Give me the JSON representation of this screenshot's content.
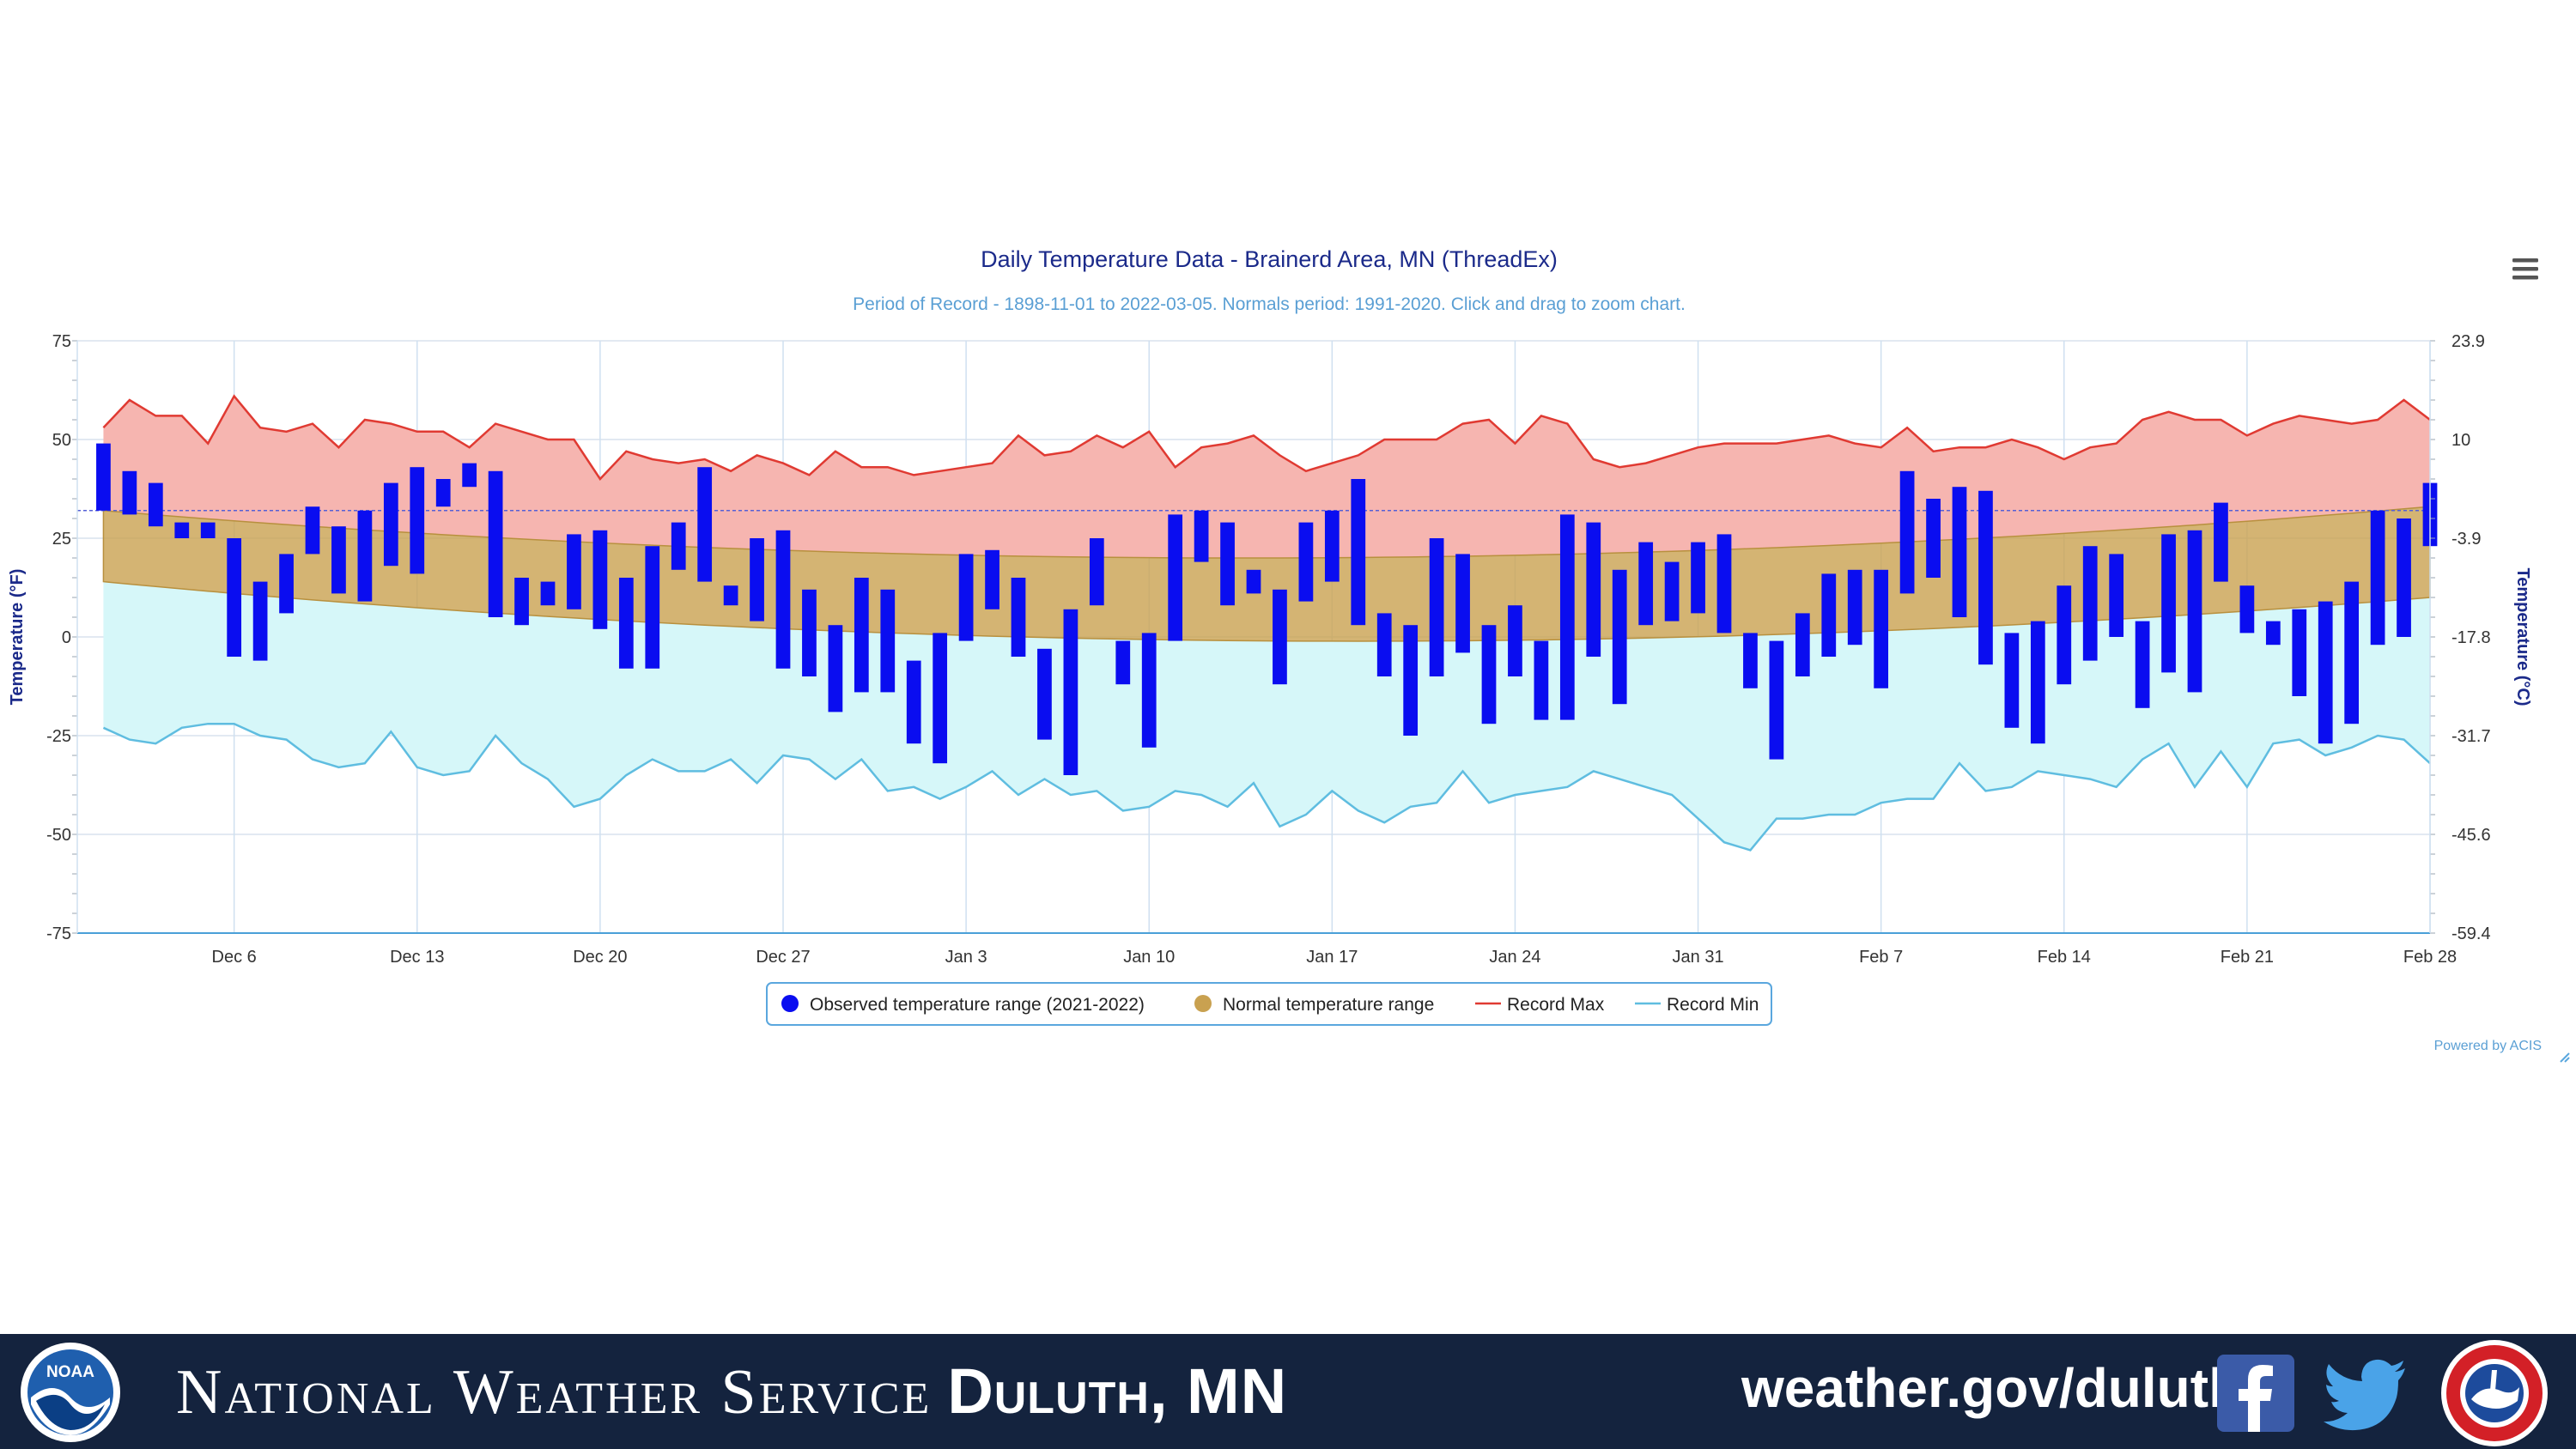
{
  "colors": {
    "observed": "#0a0df0",
    "normal": "#c9a150",
    "record_max_line": "#e03a32",
    "record_max_fill": "#f6b5b0",
    "record_min_line": "#5fbde0",
    "record_min_fill": "#d6f7f9",
    "title": "#1b2a8a",
    "subtitle": "#5a9fd4",
    "footer_bg": "#14233e"
  },
  "chart_data": {
    "type": "bar",
    "title": "Daily Temperature Data - Brainerd Area, MN (ThreadEx)",
    "subtitle": "Period of Record - 1898-11-01 to 2022-03-05. Normals period: 1991-2020. Click and drag to zoom chart.",
    "ylabel": "Temperature (°F)",
    "ylabel_right": "Temperature (°C)",
    "ylim": [
      -75,
      75
    ],
    "yticks": [
      "75",
      "50",
      "25",
      "0",
      "-25",
      "-50",
      "-75"
    ],
    "yticks_right": [
      "23.9",
      "10",
      "-3.9",
      "-17.8",
      "-31.7",
      "-45.6",
      "-59.4"
    ],
    "xlim": [
      "2021-11-30",
      "2022-02-28"
    ],
    "xticks": [
      {
        "date": "2021-12-06",
        "label": "Dec 6"
      },
      {
        "date": "2021-12-13",
        "label": "Dec 13"
      },
      {
        "date": "2021-12-20",
        "label": "Dec 20"
      },
      {
        "date": "2021-12-27",
        "label": "Dec 27"
      },
      {
        "date": "2022-01-03",
        "label": "Jan 3"
      },
      {
        "date": "2022-01-10",
        "label": "Jan 10"
      },
      {
        "date": "2022-01-17",
        "label": "Jan 17"
      },
      {
        "date": "2022-01-24",
        "label": "Jan 24"
      },
      {
        "date": "2022-01-31",
        "label": "Jan 31"
      },
      {
        "date": "2022-02-07",
        "label": "Feb 7"
      },
      {
        "date": "2022-02-14",
        "label": "Feb 14"
      },
      {
        "date": "2022-02-21",
        "label": "Feb 21"
      },
      {
        "date": "2022-02-28",
        "label": "Feb 28"
      }
    ],
    "freezing_reference_f": 32,
    "legend_position": "bottom-center",
    "legend": [
      "Observed temperature range (2021-2022)",
      "Normal temperature range",
      "Record Max",
      "Record Min"
    ],
    "credit": "Powered by ACIS",
    "observed": [
      {
        "date": "2021-12-01",
        "min": 32,
        "max": 49
      },
      {
        "date": "2021-12-02",
        "min": 31,
        "max": 42
      },
      {
        "date": "2021-12-03",
        "min": 28,
        "max": 39
      },
      {
        "date": "2021-12-04",
        "min": 25,
        "max": 29
      },
      {
        "date": "2021-12-05",
        "min": 25,
        "max": 29
      },
      {
        "date": "2021-12-06",
        "min": -5,
        "max": 25
      },
      {
        "date": "2021-12-07",
        "min": -6,
        "max": 14
      },
      {
        "date": "2021-12-08",
        "min": 6,
        "max": 21
      },
      {
        "date": "2021-12-09",
        "min": 21,
        "max": 33
      },
      {
        "date": "2021-12-10",
        "min": 11,
        "max": 28
      },
      {
        "date": "2021-12-11",
        "min": 9,
        "max": 32
      },
      {
        "date": "2021-12-12",
        "min": 18,
        "max": 39
      },
      {
        "date": "2021-12-13",
        "min": 16,
        "max": 43
      },
      {
        "date": "2021-12-14",
        "min": 33,
        "max": 40
      },
      {
        "date": "2021-12-15",
        "min": 38,
        "max": 44
      },
      {
        "date": "2021-12-16",
        "min": 5,
        "max": 42
      },
      {
        "date": "2021-12-17",
        "min": 3,
        "max": 15
      },
      {
        "date": "2021-12-18",
        "min": 8,
        "max": 14
      },
      {
        "date": "2021-12-19",
        "min": 7,
        "max": 26
      },
      {
        "date": "2021-12-20",
        "min": 2,
        "max": 27
      },
      {
        "date": "2021-12-21",
        "min": -8,
        "max": 15
      },
      {
        "date": "2021-12-22",
        "min": -8,
        "max": 23
      },
      {
        "date": "2021-12-23",
        "min": 17,
        "max": 29
      },
      {
        "date": "2021-12-24",
        "min": 14,
        "max": 43
      },
      {
        "date": "2021-12-25",
        "min": 8,
        "max": 13
      },
      {
        "date": "2021-12-26",
        "min": 4,
        "max": 25
      },
      {
        "date": "2021-12-27",
        "min": -8,
        "max": 27
      },
      {
        "date": "2021-12-28",
        "min": -10,
        "max": 12
      },
      {
        "date": "2021-12-29",
        "min": -19,
        "max": 3
      },
      {
        "date": "2021-12-30",
        "min": -14,
        "max": 15
      },
      {
        "date": "2021-12-31",
        "min": -14,
        "max": 12
      },
      {
        "date": "2022-01-01",
        "min": -27,
        "max": -6
      },
      {
        "date": "2022-01-02",
        "min": -32,
        "max": 1
      },
      {
        "date": "2022-01-03",
        "min": -1,
        "max": 21
      },
      {
        "date": "2022-01-04",
        "min": 7,
        "max": 22
      },
      {
        "date": "2022-01-05",
        "min": -5,
        "max": 15
      },
      {
        "date": "2022-01-06",
        "min": -26,
        "max": -3
      },
      {
        "date": "2022-01-07",
        "min": -35,
        "max": 7
      },
      {
        "date": "2022-01-08",
        "min": 8,
        "max": 25
      },
      {
        "date": "2022-01-09",
        "min": -12,
        "max": -1
      },
      {
        "date": "2022-01-10",
        "min": -28,
        "max": 1
      },
      {
        "date": "2022-01-11",
        "min": -1,
        "max": 31
      },
      {
        "date": "2022-01-12",
        "min": 19,
        "max": 32
      },
      {
        "date": "2022-01-13",
        "min": 8,
        "max": 29
      },
      {
        "date": "2022-01-14",
        "min": 11,
        "max": 17
      },
      {
        "date": "2022-01-15",
        "min": -12,
        "max": 12
      },
      {
        "date": "2022-01-16",
        "min": 9,
        "max": 29
      },
      {
        "date": "2022-01-17",
        "min": 14,
        "max": 32
      },
      {
        "date": "2022-01-18",
        "min": 3,
        "max": 40
      },
      {
        "date": "2022-01-19",
        "min": -10,
        "max": 6
      },
      {
        "date": "2022-01-20",
        "min": -25,
        "max": 3
      },
      {
        "date": "2022-01-21",
        "min": -10,
        "max": 25
      },
      {
        "date": "2022-01-22",
        "min": -4,
        "max": 21
      },
      {
        "date": "2022-01-23",
        "min": -22,
        "max": 3
      },
      {
        "date": "2022-01-24",
        "min": -10,
        "max": 8
      },
      {
        "date": "2022-01-25",
        "min": -21,
        "max": -1
      },
      {
        "date": "2022-01-26",
        "min": -21,
        "max": 31
      },
      {
        "date": "2022-01-27",
        "min": -5,
        "max": 29
      },
      {
        "date": "2022-01-28",
        "min": -17,
        "max": 17
      },
      {
        "date": "2022-01-29",
        "min": 3,
        "max": 24
      },
      {
        "date": "2022-01-30",
        "min": 4,
        "max": 19
      },
      {
        "date": "2022-01-31",
        "min": 6,
        "max": 24
      },
      {
        "date": "2022-02-01",
        "min": 1,
        "max": 26
      },
      {
        "date": "2022-02-02",
        "min": -13,
        "max": 1
      },
      {
        "date": "2022-02-03",
        "min": -31,
        "max": -1
      },
      {
        "date": "2022-02-04",
        "min": -10,
        "max": 6
      },
      {
        "date": "2022-02-05",
        "min": -5,
        "max": 16
      },
      {
        "date": "2022-02-06",
        "min": -2,
        "max": 17
      },
      {
        "date": "2022-02-07",
        "min": -13,
        "max": 17
      },
      {
        "date": "2022-02-08",
        "min": 11,
        "max": 42
      },
      {
        "date": "2022-02-09",
        "min": 15,
        "max": 35
      },
      {
        "date": "2022-02-10",
        "min": 5,
        "max": 38
      },
      {
        "date": "2022-02-11",
        "min": -7,
        "max": 37
      },
      {
        "date": "2022-02-12",
        "min": -23,
        "max": 1
      },
      {
        "date": "2022-02-13",
        "min": -27,
        "max": 4
      },
      {
        "date": "2022-02-14",
        "min": -12,
        "max": 13
      },
      {
        "date": "2022-02-15",
        "min": -6,
        "max": 23
      },
      {
        "date": "2022-02-16",
        "min": 0,
        "max": 21
      },
      {
        "date": "2022-02-17",
        "min": -18,
        "max": 4
      },
      {
        "date": "2022-02-18",
        "min": -9,
        "max": 26
      },
      {
        "date": "2022-02-19",
        "min": -14,
        "max": 27
      },
      {
        "date": "2022-02-20",
        "min": 14,
        "max": 34
      },
      {
        "date": "2022-02-21",
        "min": 1,
        "max": 13
      },
      {
        "date": "2022-02-22",
        "min": -2,
        "max": 4
      },
      {
        "date": "2022-02-23",
        "min": -15,
        "max": 7
      },
      {
        "date": "2022-02-24",
        "min": -27,
        "max": 9
      },
      {
        "date": "2022-02-25",
        "min": -22,
        "max": 14
      },
      {
        "date": "2022-02-26",
        "min": -2,
        "max": 32
      },
      {
        "date": "2022-02-27",
        "min": 0,
        "max": 30
      },
      {
        "date": "2022-02-28",
        "min": 23,
        "max": 39
      }
    ],
    "normal_max_start": 32,
    "normal_max_mid": 20,
    "normal_max_end": 33,
    "normal_min_start": 14,
    "normal_min_mid": -1,
    "normal_min_end": 10,
    "record_max": [
      53,
      60,
      56,
      56,
      49,
      61,
      53,
      52,
      54,
      48,
      55,
      54,
      52,
      52,
      48,
      54,
      52,
      50,
      50,
      40,
      47,
      45,
      44,
      45,
      42,
      46,
      44,
      41,
      47,
      43,
      43,
      41,
      42,
      43,
      44,
      51,
      46,
      47,
      51,
      48,
      52,
      43,
      48,
      49,
      51,
      46,
      42,
      44,
      46,
      50,
      50,
      50,
      54,
      55,
      49,
      56,
      54,
      45,
      43,
      44,
      46,
      48,
      49,
      49,
      49,
      50,
      51,
      49,
      48,
      53,
      47,
      48,
      48,
      50,
      48,
      45,
      48,
      49,
      55,
      57,
      55,
      55,
      51,
      54,
      56,
      55,
      54,
      55,
      60,
      55
    ],
    "record_min": [
      -23,
      -26,
      -27,
      -23,
      -22,
      -22,
      -25,
      -26,
      -31,
      -33,
      -32,
      -24,
      -33,
      -35,
      -34,
      -25,
      -32,
      -36,
      -43,
      -41,
      -35,
      -31,
      -34,
      -34,
      -31,
      -37,
      -30,
      -31,
      -36,
      -31,
      -39,
      -38,
      -41,
      -38,
      -34,
      -40,
      -36,
      -40,
      -39,
      -44,
      -43,
      -39,
      -40,
      -43,
      -37,
      -48,
      -45,
      -39,
      -44,
      -47,
      -43,
      -42,
      -34,
      -42,
      -40,
      -39,
      -38,
      -34,
      -36,
      -38,
      -40,
      -46,
      -52,
      -54,
      -46,
      -46,
      -45,
      -45,
      -42,
      -41,
      -41,
      -32,
      -39,
      -38,
      -34,
      -35,
      -36,
      -38,
      -31,
      -27,
      -38,
      -29,
      -38,
      -27,
      -26,
      -30,
      -28,
      -25,
      -26,
      -32
    ]
  },
  "footer": {
    "agency": "National Weather Service",
    "office": "Duluth, MN",
    "url": "weather.gov/duluth",
    "noaa_logo_text": "NOAA"
  },
  "icons": {
    "menu": "hamburger-menu-icon",
    "facebook": "facebook-icon",
    "twitter": "twitter-icon",
    "noaa": "noaa-logo",
    "nws": "nws-logo",
    "resize": "resize-handle-icon"
  }
}
